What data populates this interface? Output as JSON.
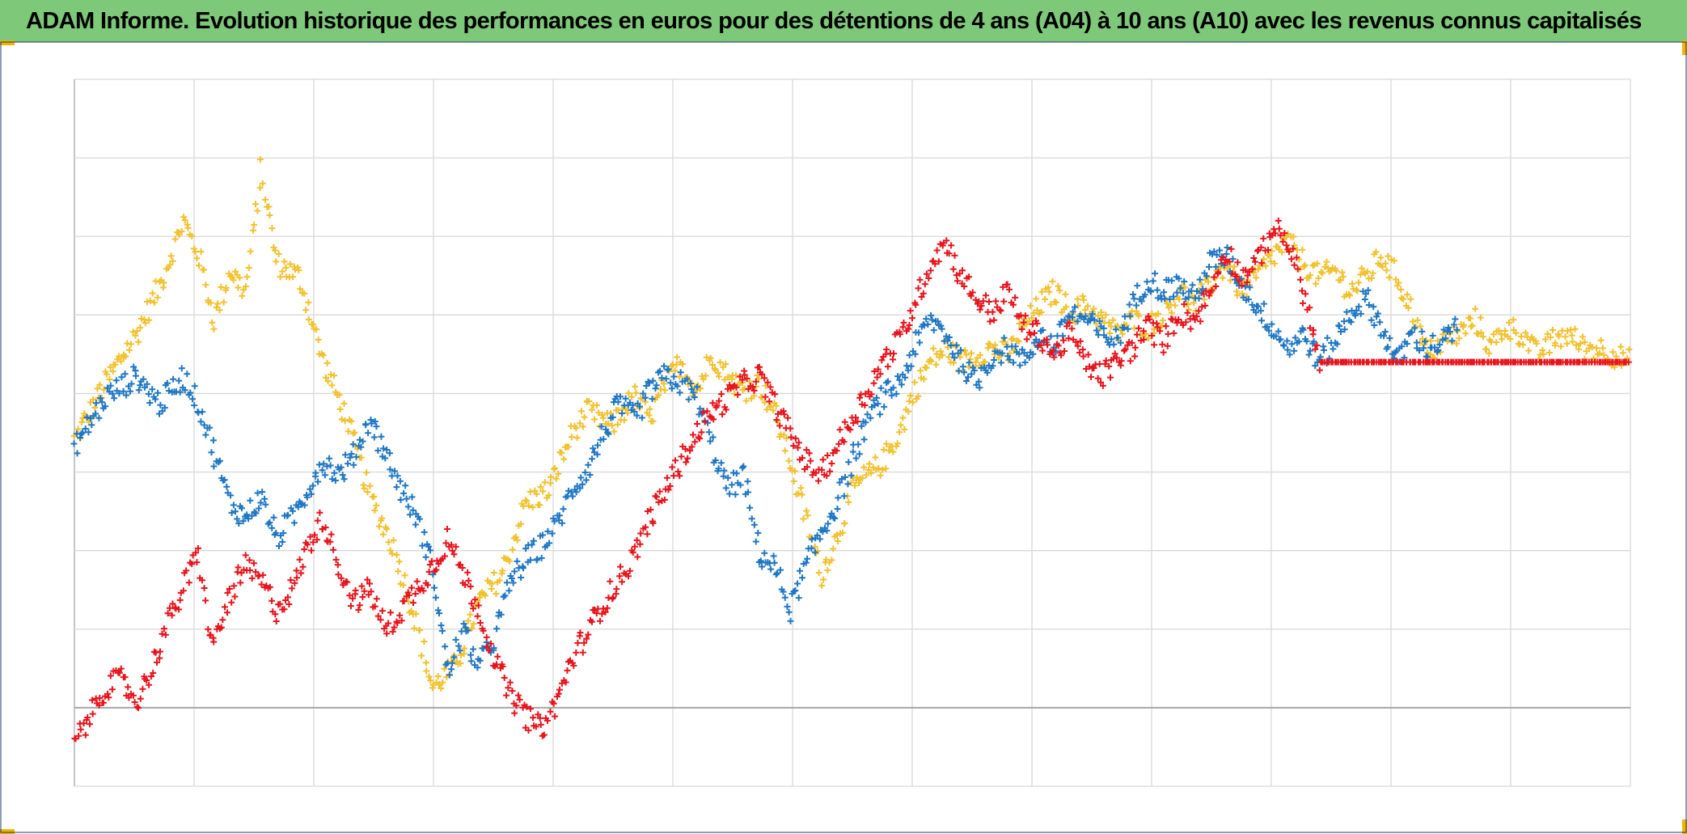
{
  "title": "ADAM Informe. Evolution historique des performances en euros pour des détentions de 4 ans (A04) à 10 ans (A10) avec les revenus connus capitalisés",
  "colors": {
    "title_bar": "#7ec87a",
    "corner_marks": "#f2b400",
    "grid": "#d9d9d9",
    "axis": "#a6a6a6",
    "border": "#1f3864"
  },
  "chart_data": {
    "type": "scatter",
    "marker": "plus",
    "grid": true,
    "x_gridlines": 13,
    "y_gridlines": 9,
    "axis_labels_visible": false,
    "legend": "none",
    "series": [
      {
        "color": "#f2c12e",
        "keypoints": [
          [
            0.0,
            0.49
          ],
          [
            0.02,
            0.57
          ],
          [
            0.04,
            0.64
          ],
          [
            0.055,
            0.71
          ],
          [
            0.07,
            0.8
          ],
          [
            0.08,
            0.75
          ],
          [
            0.09,
            0.66
          ],
          [
            0.1,
            0.73
          ],
          [
            0.11,
            0.7
          ],
          [
            0.115,
            0.78
          ],
          [
            0.12,
            0.87
          ],
          [
            0.13,
            0.74
          ],
          [
            0.145,
            0.72
          ],
          [
            0.16,
            0.6
          ],
          [
            0.175,
            0.52
          ],
          [
            0.19,
            0.41
          ],
          [
            0.205,
            0.34
          ],
          [
            0.22,
            0.23
          ],
          [
            0.23,
            0.14
          ],
          [
            0.245,
            0.17
          ],
          [
            0.26,
            0.26
          ],
          [
            0.275,
            0.3
          ],
          [
            0.29,
            0.4
          ],
          [
            0.305,
            0.42
          ],
          [
            0.32,
            0.5
          ],
          [
            0.33,
            0.53
          ],
          [
            0.345,
            0.51
          ],
          [
            0.36,
            0.55
          ],
          [
            0.37,
            0.52
          ],
          [
            0.38,
            0.57
          ],
          [
            0.39,
            0.6
          ],
          [
            0.4,
            0.56
          ],
          [
            0.41,
            0.61
          ],
          [
            0.42,
            0.58
          ],
          [
            0.43,
            0.56
          ],
          [
            0.44,
            0.57
          ],
          [
            0.45,
            0.53
          ],
          [
            0.46,
            0.46
          ],
          [
            0.47,
            0.38
          ],
          [
            0.48,
            0.3
          ],
          [
            0.49,
            0.35
          ],
          [
            0.5,
            0.42
          ],
          [
            0.51,
            0.44
          ],
          [
            0.52,
            0.46
          ],
          [
            0.53,
            0.5
          ],
          [
            0.54,
            0.56
          ],
          [
            0.55,
            0.6
          ],
          [
            0.56,
            0.62
          ],
          [
            0.57,
            0.6
          ],
          [
            0.58,
            0.61
          ],
          [
            0.59,
            0.62
          ],
          [
            0.6,
            0.61
          ],
          [
            0.61,
            0.65
          ],
          [
            0.62,
            0.68
          ],
          [
            0.63,
            0.7
          ],
          [
            0.64,
            0.67
          ],
          [
            0.65,
            0.68
          ],
          [
            0.66,
            0.66
          ],
          [
            0.67,
            0.64
          ],
          [
            0.68,
            0.66
          ],
          [
            0.69,
            0.65
          ],
          [
            0.7,
            0.67
          ],
          [
            0.71,
            0.7
          ],
          [
            0.72,
            0.68
          ],
          [
            0.73,
            0.71
          ],
          [
            0.74,
            0.74
          ],
          [
            0.75,
            0.7
          ],
          [
            0.76,
            0.72
          ],
          [
            0.77,
            0.75
          ],
          [
            0.78,
            0.77
          ],
          [
            0.79,
            0.74
          ],
          [
            0.8,
            0.72
          ],
          [
            0.81,
            0.73
          ],
          [
            0.82,
            0.7
          ],
          [
            0.83,
            0.72
          ],
          [
            0.84,
            0.75
          ],
          [
            0.85,
            0.72
          ],
          [
            0.86,
            0.67
          ],
          [
            0.87,
            0.61
          ],
          [
            0.88,
            0.63
          ],
          [
            0.89,
            0.64
          ],
          [
            0.9,
            0.66
          ],
          [
            0.91,
            0.62
          ],
          [
            0.92,
            0.65
          ],
          [
            0.93,
            0.64
          ],
          [
            0.94,
            0.61
          ],
          [
            0.95,
            0.63
          ],
          [
            0.96,
            0.64
          ],
          [
            0.97,
            0.62
          ],
          [
            0.98,
            0.62
          ],
          [
            1.0,
            0.6
          ]
        ]
      },
      {
        "color": "#1f77c4",
        "keypoints": [
          [
            0.0,
            0.48
          ],
          [
            0.02,
            0.55
          ],
          [
            0.04,
            0.58
          ],
          [
            0.055,
            0.54
          ],
          [
            0.07,
            0.58
          ],
          [
            0.08,
            0.54
          ],
          [
            0.09,
            0.47
          ],
          [
            0.1,
            0.4
          ],
          [
            0.11,
            0.38
          ],
          [
            0.12,
            0.41
          ],
          [
            0.13,
            0.35
          ],
          [
            0.14,
            0.38
          ],
          [
            0.15,
            0.42
          ],
          [
            0.16,
            0.46
          ],
          [
            0.17,
            0.44
          ],
          [
            0.18,
            0.47
          ],
          [
            0.19,
            0.52
          ],
          [
            0.2,
            0.47
          ],
          [
            0.21,
            0.42
          ],
          [
            0.22,
            0.38
          ],
          [
            0.23,
            0.31
          ],
          [
            0.24,
            0.16
          ],
          [
            0.25,
            0.22
          ],
          [
            0.26,
            0.17
          ],
          [
            0.27,
            0.21
          ],
          [
            0.28,
            0.29
          ],
          [
            0.29,
            0.32
          ],
          [
            0.3,
            0.34
          ],
          [
            0.31,
            0.37
          ],
          [
            0.32,
            0.42
          ],
          [
            0.33,
            0.45
          ],
          [
            0.34,
            0.5
          ],
          [
            0.35,
            0.54
          ],
          [
            0.36,
            0.52
          ],
          [
            0.37,
            0.56
          ],
          [
            0.38,
            0.58
          ],
          [
            0.39,
            0.57
          ],
          [
            0.4,
            0.55
          ],
          [
            0.41,
            0.48
          ],
          [
            0.42,
            0.42
          ],
          [
            0.43,
            0.44
          ],
          [
            0.44,
            0.33
          ],
          [
            0.45,
            0.31
          ],
          [
            0.46,
            0.25
          ],
          [
            0.47,
            0.31
          ],
          [
            0.48,
            0.36
          ],
          [
            0.49,
            0.4
          ],
          [
            0.5,
            0.46
          ],
          [
            0.51,
            0.52
          ],
          [
            0.52,
            0.55
          ],
          [
            0.53,
            0.57
          ],
          [
            0.54,
            0.62
          ],
          [
            0.55,
            0.66
          ],
          [
            0.56,
            0.64
          ],
          [
            0.57,
            0.6
          ],
          [
            0.58,
            0.57
          ],
          [
            0.59,
            0.61
          ],
          [
            0.6,
            0.62
          ],
          [
            0.61,
            0.6
          ],
          [
            0.62,
            0.64
          ],
          [
            0.63,
            0.62
          ],
          [
            0.64,
            0.67
          ],
          [
            0.65,
            0.66
          ],
          [
            0.66,
            0.64
          ],
          [
            0.67,
            0.63
          ],
          [
            0.68,
            0.68
          ],
          [
            0.69,
            0.72
          ],
          [
            0.7,
            0.7
          ],
          [
            0.71,
            0.71
          ],
          [
            0.72,
            0.69
          ],
          [
            0.73,
            0.74
          ],
          [
            0.74,
            0.75
          ],
          [
            0.75,
            0.71
          ],
          [
            0.76,
            0.68
          ],
          [
            0.77,
            0.65
          ],
          [
            0.78,
            0.62
          ],
          [
            0.79,
            0.64
          ],
          [
            0.8,
            0.6
          ],
          [
            0.81,
            0.63
          ],
          [
            0.82,
            0.67
          ],
          [
            0.83,
            0.69
          ],
          [
            0.84,
            0.65
          ],
          [
            0.85,
            0.6
          ],
          [
            0.86,
            0.64
          ],
          [
            0.87,
            0.62
          ],
          [
            0.88,
            0.63
          ],
          [
            0.89,
            0.65
          ]
        ]
      },
      {
        "color": "#e8141c",
        "keypoints": [
          [
            0.0,
            0.06
          ],
          [
            0.01,
            0.1
          ],
          [
            0.02,
            0.14
          ],
          [
            0.03,
            0.15
          ],
          [
            0.04,
            0.12
          ],
          [
            0.05,
            0.17
          ],
          [
            0.06,
            0.23
          ],
          [
            0.07,
            0.28
          ],
          [
            0.08,
            0.33
          ],
          [
            0.085,
            0.24
          ],
          [
            0.09,
            0.2
          ],
          [
            0.1,
            0.27
          ],
          [
            0.11,
            0.31
          ],
          [
            0.12,
            0.29
          ],
          [
            0.13,
            0.25
          ],
          [
            0.14,
            0.28
          ],
          [
            0.15,
            0.34
          ],
          [
            0.16,
            0.38
          ],
          [
            0.17,
            0.31
          ],
          [
            0.18,
            0.26
          ],
          [
            0.19,
            0.28
          ],
          [
            0.2,
            0.22
          ],
          [
            0.21,
            0.25
          ],
          [
            0.22,
            0.28
          ],
          [
            0.23,
            0.31
          ],
          [
            0.24,
            0.35
          ],
          [
            0.25,
            0.3
          ],
          [
            0.26,
            0.25
          ],
          [
            0.27,
            0.18
          ],
          [
            0.28,
            0.13
          ],
          [
            0.29,
            0.1
          ],
          [
            0.3,
            0.08
          ],
          [
            0.31,
            0.12
          ],
          [
            0.32,
            0.18
          ],
          [
            0.33,
            0.22
          ],
          [
            0.34,
            0.26
          ],
          [
            0.35,
            0.29
          ],
          [
            0.36,
            0.33
          ],
          [
            0.37,
            0.38
          ],
          [
            0.38,
            0.42
          ],
          [
            0.39,
            0.46
          ],
          [
            0.4,
            0.5
          ],
          [
            0.41,
            0.53
          ],
          [
            0.42,
            0.55
          ],
          [
            0.43,
            0.57
          ],
          [
            0.44,
            0.58
          ],
          [
            0.45,
            0.54
          ],
          [
            0.46,
            0.5
          ],
          [
            0.47,
            0.46
          ],
          [
            0.48,
            0.44
          ],
          [
            0.49,
            0.48
          ],
          [
            0.5,
            0.52
          ],
          [
            0.51,
            0.56
          ],
          [
            0.52,
            0.6
          ],
          [
            0.53,
            0.63
          ],
          [
            0.54,
            0.68
          ],
          [
            0.55,
            0.74
          ],
          [
            0.56,
            0.77
          ],
          [
            0.57,
            0.72
          ],
          [
            0.58,
            0.69
          ],
          [
            0.59,
            0.67
          ],
          [
            0.6,
            0.7
          ],
          [
            0.61,
            0.65
          ],
          [
            0.62,
            0.64
          ],
          [
            0.63,
            0.61
          ],
          [
            0.64,
            0.64
          ],
          [
            0.65,
            0.6
          ],
          [
            0.66,
            0.58
          ],
          [
            0.67,
            0.6
          ],
          [
            0.68,
            0.62
          ],
          [
            0.69,
            0.65
          ],
          [
            0.7,
            0.63
          ],
          [
            0.71,
            0.67
          ],
          [
            0.72,
            0.66
          ],
          [
            0.73,
            0.7
          ],
          [
            0.74,
            0.76
          ],
          [
            0.75,
            0.72
          ],
          [
            0.76,
            0.74
          ],
          [
            0.77,
            0.79
          ],
          [
            0.78,
            0.77
          ],
          [
            0.79,
            0.7
          ],
          [
            0.8,
            0.6
          ],
          [
            1.0,
            0.6
          ]
        ]
      }
    ]
  }
}
